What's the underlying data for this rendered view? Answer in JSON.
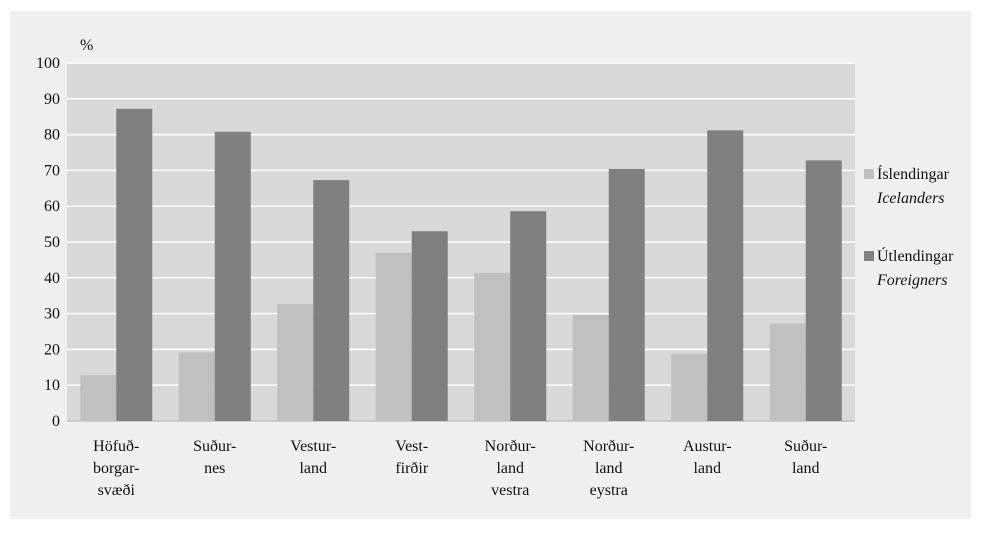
{
  "chart_data": {
    "type": "bar",
    "unit_label": "%",
    "categories": [
      [
        "Höfuð-",
        "borgar-",
        "svæði"
      ],
      [
        "Suður-",
        "nes"
      ],
      [
        "Vestur-",
        "land"
      ],
      [
        "Vest-",
        "firðir"
      ],
      [
        "Norður-",
        "land",
        "vestra"
      ],
      [
        "Norður-",
        "land",
        "eystra"
      ],
      [
        "Austur-",
        "land"
      ],
      [
        "Suður-",
        "land"
      ]
    ],
    "series": [
      {
        "name": "Íslendingar",
        "name_en": "Icelanders",
        "color": "#c0c0c0",
        "values": [
          12.8,
          19.2,
          32.7,
          47,
          41.4,
          29.6,
          18.8,
          27.2
        ]
      },
      {
        "name": "Útlendingar",
        "name_en": "Foreigners",
        "color": "#808080",
        "values": [
          87.2,
          80.8,
          67.3,
          53,
          58.6,
          70.4,
          81.2,
          72.8
        ]
      }
    ],
    "ylim": [
      0,
      100
    ],
    "yticks": [
      0,
      10,
      20,
      30,
      40,
      50,
      60,
      70,
      80,
      90,
      100
    ],
    "grid": true,
    "legend": "right"
  }
}
